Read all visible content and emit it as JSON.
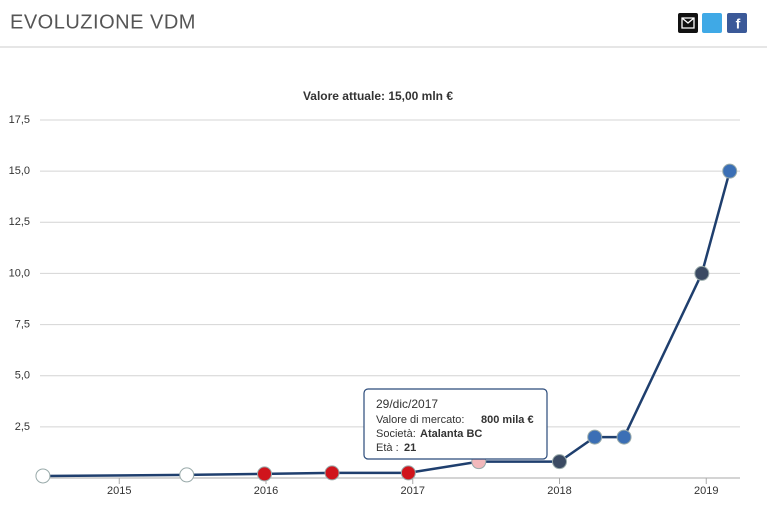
{
  "header": {
    "title": "EVOLUZIONE VDM"
  },
  "chart_data": {
    "type": "line",
    "subtitle": "Valore attuale: 15,00 mln €",
    "x": [
      2014.48,
      2015.46,
      2015.99,
      2016.45,
      2016.97,
      2017.45,
      2018.0,
      2018.24,
      2018.44,
      2018.97,
      2019.16
    ],
    "values": [
      0.1,
      0.15,
      0.2,
      0.25,
      0.25,
      0.8,
      0.8,
      2,
      2,
      10,
      15
    ],
    "color": "#1f3f6e",
    "marker_colors": [
      "#ffffff",
      "#ffffff",
      "#d0141c",
      "#d0141c",
      "#d0141c",
      "#f2b8bb",
      "#3b4a63",
      "#3b6fb5",
      "#3b6fb5",
      "#3b4a63",
      "#3b6fb5"
    ],
    "xlim": [
      2014.46,
      2019.23
    ],
    "xticks": [
      2015,
      2016,
      2017,
      2018,
      2019
    ],
    "ylim": [
      0,
      17.5
    ],
    "yticks": [
      {
        "value": 2.5,
        "label": "2,5"
      },
      {
        "value": 5,
        "label": "5,0"
      },
      {
        "value": 7.5,
        "label": "7,5"
      },
      {
        "value": 10,
        "label": "10,0"
      },
      {
        "value": 12.5,
        "label": "12,5"
      },
      {
        "value": 15,
        "label": "15,0"
      },
      {
        "value": 17.5,
        "label": "17,5"
      }
    ],
    "grid": true,
    "tooltip": {
      "date": "29/dic/2017",
      "value_label": "Valore di mercato:",
      "value": "800 mila €",
      "club_label": "Società:",
      "club": "Atalanta BC",
      "age_label": "Età :",
      "age": "21"
    }
  }
}
